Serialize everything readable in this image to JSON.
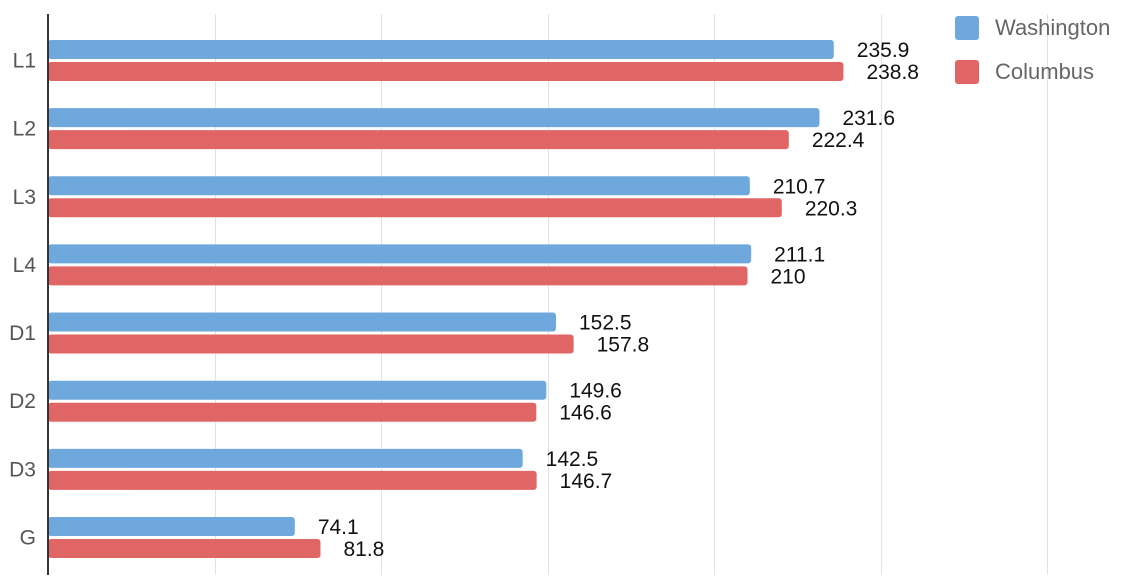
{
  "chart_data": {
    "type": "bar",
    "orientation": "horizontal",
    "categories": [
      "L1",
      "L2",
      "L3",
      "L4",
      "D1",
      "D2",
      "D3",
      "G"
    ],
    "series": [
      {
        "name": "Washington",
        "color": "#6fa8dc",
        "values": [
          235.9,
          231.6,
          210.7,
          211.1,
          152.5,
          149.6,
          142.5,
          74.1
        ],
        "labels": [
          "235.9",
          "231.6",
          "210.7",
          "211.1",
          "152.5",
          "149.6",
          "142.5",
          "74.1"
        ]
      },
      {
        "name": "Columbus",
        "color": "#e06666",
        "values": [
          238.8,
          222.4,
          220.3,
          210,
          157.8,
          146.6,
          146.7,
          81.8
        ],
        "labels": [
          "238.8",
          "222.4",
          "220.3",
          "210",
          "157.8",
          "146.6",
          "146.7",
          "81.8"
        ]
      }
    ],
    "xlim": [
      0,
      300
    ],
    "grid": true,
    "legend_position": "top-right"
  }
}
